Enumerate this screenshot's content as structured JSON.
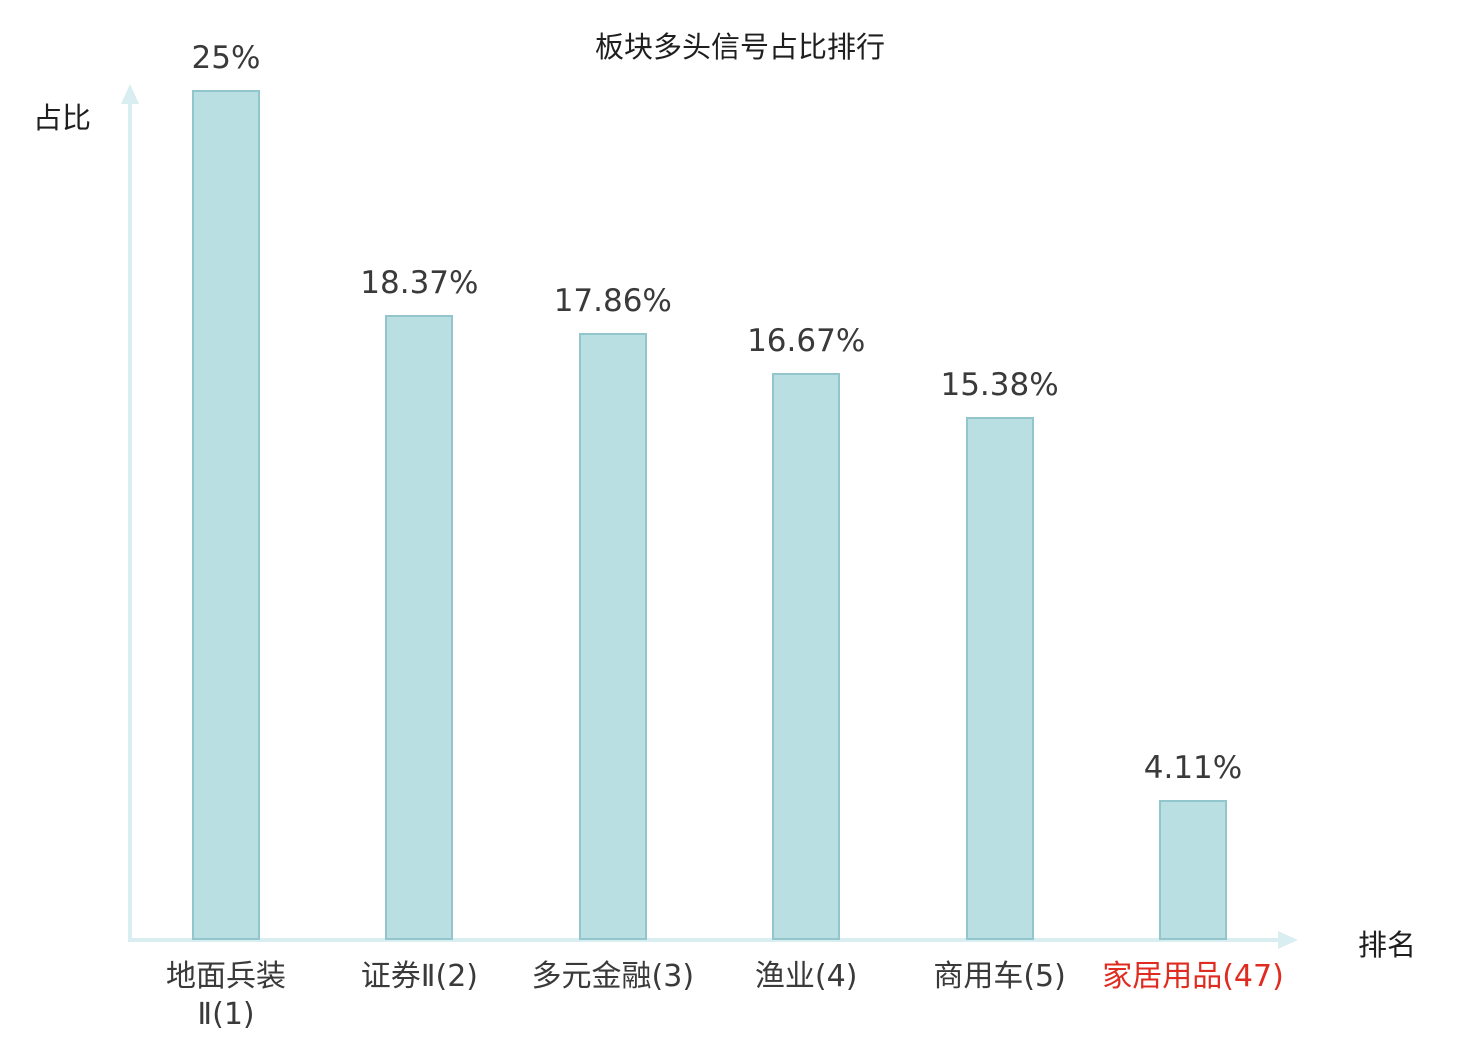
{
  "title": "板块多头信号占比排行",
  "colors": {
    "bar_fill": "#b9dfe3",
    "bar_border": "#93c6cc",
    "axis": "#d9eef0",
    "text": "#3a3a3a",
    "highlight": "#e02b20"
  },
  "chart_data": {
    "type": "bar",
    "title": "板块多头信号占比排行",
    "xlabel": "排名",
    "ylabel": "占比",
    "categories": [
      "地面兵装\nⅡ(1)",
      "证券Ⅱ(2)",
      "多元金融(3)",
      "渔业(4)",
      "商用车(5)",
      "家居用品(47)"
    ],
    "values": [
      25,
      18.37,
      17.86,
      16.67,
      15.38,
      4.11
    ],
    "value_labels": [
      "25%",
      "18.37%",
      "17.86%",
      "16.67%",
      "15.38%",
      "4.11%"
    ],
    "ylim": [
      0,
      25
    ],
    "grid": false,
    "legend": "none",
    "highlight_index": 5,
    "highlight_meaning": "last category label drawn in red"
  }
}
